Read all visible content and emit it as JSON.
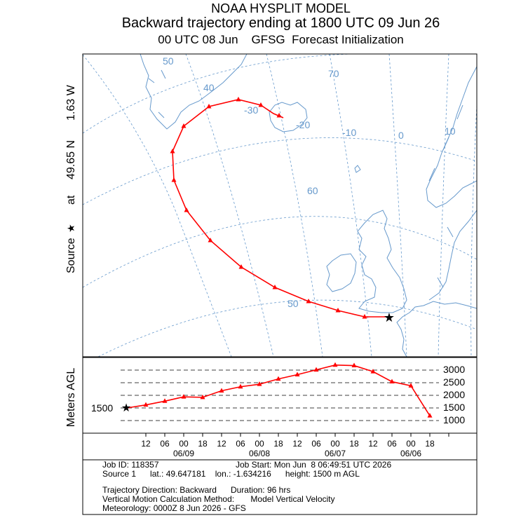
{
  "titles": {
    "line1": "NOAA HYSPLIT MODEL",
    "line2": "Backward trajectory ending at 1800 UTC 09 Jun 26",
    "line3": "00 UTC 08 Jun    GFSG  Forecast Initialization"
  },
  "map": {
    "side_label_source": "Source",
    "side_label_at": "at",
    "side_label_lat": "49.65 N",
    "side_label_lon": "1.63 W",
    "grid_labels": [
      "50",
      "40",
      "-30",
      "-20",
      "-10",
      "0",
      "10",
      "70",
      "60",
      "50"
    ],
    "colors": {
      "trajectory": "#ff0000",
      "coast": "#6699cc",
      "grid": "#6699cc"
    }
  },
  "height_panel": {
    "ylabel": "Meters AGL",
    "source_height": "1500",
    "levels": [
      "3000",
      "2500",
      "2000",
      "1500",
      "1000"
    ]
  },
  "time_axis": {
    "hour_ticks": [
      "12",
      "06",
      "00",
      "18",
      "12",
      "06",
      "00",
      "18",
      "12",
      "06",
      "00",
      "18",
      "12",
      "06",
      "00",
      "18"
    ],
    "date_labels": [
      "06/09",
      "06/08",
      "06/07",
      "06/06"
    ]
  },
  "info": {
    "job_id": "Job ID: 118357",
    "job_start": "Job Start: Mon Jun  8 06:49:51 UTC 2026",
    "source_line": "Source 1      lat.: 49.647181    lon.: -1.634216      height: 1500 m AGL",
    "direction": "Trajectory Direction: Backward      Duration: 96 hrs",
    "vertical": "Vertical Motion Calculation Method:       Model Vertical Velocity",
    "meteorology": "Meteorology: 0000Z 8 Jun 2026 - GFS"
  },
  "chart_data": {
    "type": "line",
    "title": "",
    "xlabel": "",
    "ylabel": "Meters AGL",
    "x_hours_back": [
      0,
      6,
      12,
      18,
      24,
      30,
      36,
      42,
      48,
      54,
      60,
      66,
      72,
      78,
      84,
      90,
      96
    ],
    "series": [
      {
        "values": [
          1500,
          1620,
          1770,
          1940,
          1920,
          2180,
          2340,
          2440,
          2650,
          2820,
          3010,
          3200,
          3180,
          2940,
          2540,
          2380,
          1190
        ]
      }
    ]
  }
}
